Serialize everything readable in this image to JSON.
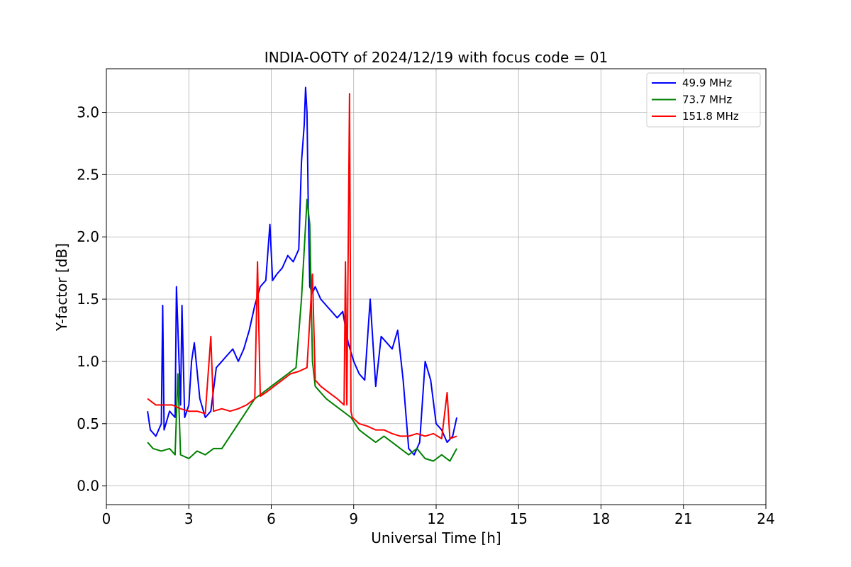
{
  "chart_data": {
    "type": "line",
    "title": "INDIA-OOTY of 2024/12/19 with focus code = 01",
    "xlabel": "Universal Time [h]",
    "ylabel": "Y-factor [dB]",
    "xlim": [
      0,
      24
    ],
    "ylim": [
      -0.15,
      3.35
    ],
    "xticks": [
      "0",
      "3",
      "6",
      "9",
      "12",
      "15",
      "18",
      "21",
      "24"
    ],
    "yticks": [
      "0.0",
      "0.5",
      "1.0",
      "1.5",
      "2.0",
      "2.5",
      "3.0"
    ],
    "grid": true,
    "legend_position": "top-right",
    "series": [
      {
        "name": " 49.9 MHz",
        "color": "#0000ff",
        "x": [
          1.5,
          1.6,
          1.8,
          2.0,
          2.05,
          2.1,
          2.3,
          2.5,
          2.55,
          2.7,
          2.75,
          2.85,
          3.0,
          3.1,
          3.2,
          3.4,
          3.6,
          3.8,
          4.0,
          4.2,
          4.4,
          4.6,
          4.8,
          5.0,
          5.2,
          5.4,
          5.6,
          5.8,
          5.95,
          6.05,
          6.2,
          6.4,
          6.6,
          6.8,
          7.0,
          7.1,
          7.2,
          7.25,
          7.3,
          7.35,
          7.4,
          7.5,
          7.6,
          7.8,
          8.0,
          8.2,
          8.4,
          8.6,
          8.8,
          9.0,
          9.2,
          9.4,
          9.6,
          9.8,
          10.0,
          10.2,
          10.4,
          10.6,
          10.8,
          11.0,
          11.2,
          11.4,
          11.6,
          11.8,
          12.0,
          12.2,
          12.4,
          12.6,
          12.75
        ],
        "values": [
          0.6,
          0.45,
          0.4,
          0.5,
          1.45,
          0.45,
          0.6,
          0.55,
          1.6,
          0.65,
          1.45,
          0.55,
          0.65,
          1.0,
          1.15,
          0.7,
          0.55,
          0.6,
          0.95,
          1.0,
          1.05,
          1.1,
          1.0,
          1.1,
          1.25,
          1.45,
          1.6,
          1.65,
          2.1,
          1.65,
          1.7,
          1.75,
          1.85,
          1.8,
          1.9,
          2.6,
          2.9,
          3.2,
          3.0,
          2.2,
          1.6,
          1.55,
          1.6,
          1.5,
          1.45,
          1.4,
          1.35,
          1.4,
          1.15,
          1.0,
          0.9,
          0.85,
          1.5,
          0.8,
          1.2,
          1.15,
          1.1,
          1.25,
          0.85,
          0.3,
          0.25,
          0.35,
          1.0,
          0.85,
          0.5,
          0.45,
          0.35,
          0.4,
          0.55
        ]
      },
      {
        "name": " 73.7 MHz",
        "color": "#008000",
        "x": [
          1.5,
          1.7,
          2.0,
          2.3,
          2.5,
          2.6,
          2.7,
          3.0,
          3.3,
          3.6,
          3.9,
          4.2,
          4.5,
          4.8,
          5.1,
          5.4,
          5.7,
          6.0,
          6.3,
          6.6,
          6.9,
          7.1,
          7.2,
          7.3,
          7.4,
          7.5,
          7.6,
          7.8,
          8.0,
          8.3,
          8.6,
          8.9,
          9.2,
          9.5,
          9.8,
          10.1,
          10.4,
          10.7,
          11.0,
          11.3,
          11.6,
          11.9,
          12.2,
          12.5,
          12.75
        ],
        "values": [
          0.35,
          0.3,
          0.28,
          0.3,
          0.25,
          0.9,
          0.25,
          0.22,
          0.28,
          0.25,
          0.3,
          0.3,
          0.4,
          0.5,
          0.6,
          0.7,
          0.75,
          0.8,
          0.85,
          0.9,
          0.95,
          1.5,
          1.9,
          2.3,
          2.1,
          1.0,
          0.8,
          0.75,
          0.7,
          0.65,
          0.6,
          0.55,
          0.45,
          0.4,
          0.35,
          0.4,
          0.35,
          0.3,
          0.25,
          0.3,
          0.22,
          0.2,
          0.25,
          0.2,
          0.3
        ]
      },
      {
        "name": " 151.8 MHz",
        "color": "#ff0000",
        "x": [
          1.5,
          1.8,
          2.1,
          2.4,
          2.7,
          3.0,
          3.3,
          3.6,
          3.8,
          3.9,
          4.2,
          4.5,
          4.8,
          5.1,
          5.4,
          5.5,
          5.6,
          5.8,
          6.1,
          6.4,
          6.7,
          7.0,
          7.3,
          7.5,
          7.6,
          7.8,
          8.1,
          8.4,
          8.65,
          8.7,
          8.75,
          8.85,
          8.9,
          8.95,
          9.2,
          9.5,
          9.8,
          10.1,
          10.4,
          10.7,
          11.0,
          11.3,
          11.6,
          11.9,
          12.2,
          12.4,
          12.5,
          12.75
        ],
        "values": [
          0.7,
          0.65,
          0.65,
          0.65,
          0.62,
          0.6,
          0.6,
          0.58,
          1.2,
          0.6,
          0.62,
          0.6,
          0.62,
          0.65,
          0.7,
          1.8,
          0.72,
          0.75,
          0.8,
          0.85,
          0.9,
          0.92,
          0.95,
          1.7,
          0.85,
          0.8,
          0.75,
          0.7,
          0.65,
          1.8,
          0.65,
          3.15,
          0.6,
          0.55,
          0.5,
          0.48,
          0.45,
          0.45,
          0.42,
          0.4,
          0.4,
          0.42,
          0.4,
          0.42,
          0.38,
          0.75,
          0.38,
          0.4
        ]
      }
    ]
  }
}
